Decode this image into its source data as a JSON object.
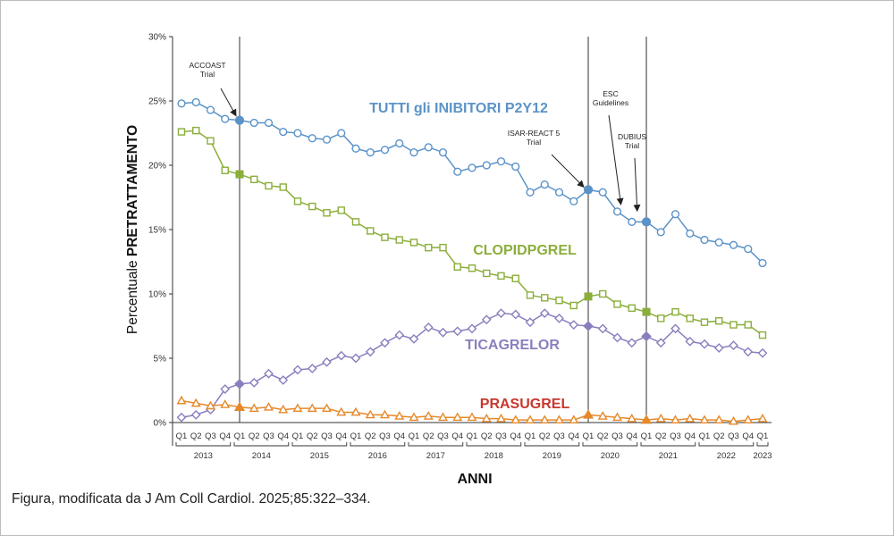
{
  "caption": "Figura, modificata da J Am Coll Cardiol. 2025;85:322–334.",
  "chart_data": {
    "type": "line",
    "ylabel_prefix": "Percentuale ",
    "ylabel_strong": "PRETRATTAMENTO",
    "xlabel": "ANNI",
    "ylim": [
      0,
      30
    ],
    "yticks": [
      0,
      5,
      10,
      15,
      20,
      25,
      30
    ],
    "ytick_labels": [
      "0%",
      "5%",
      "10%",
      "15%",
      "20%",
      "25%",
      "30%"
    ],
    "quarters": [
      "Q1",
      "Q2",
      "Q3",
      "Q4",
      "Q1",
      "Q2",
      "Q3",
      "Q4",
      "Q1",
      "Q2",
      "Q3",
      "Q4",
      "Q1",
      "Q2",
      "Q3",
      "Q4",
      "Q1",
      "Q2",
      "Q3",
      "Q4",
      "Q1",
      "Q2",
      "Q3",
      "Q4",
      "Q1",
      "Q2",
      "Q3",
      "Q4",
      "Q1",
      "Q2",
      "Q3",
      "Q4",
      "Q1",
      "Q2",
      "Q3",
      "Q4",
      "Q1",
      "Q2",
      "Q3",
      "Q4",
      "Q1"
    ],
    "years": [
      {
        "label": "2013",
        "start": 0,
        "end": 3
      },
      {
        "label": "2014",
        "start": 4,
        "end": 7
      },
      {
        "label": "2015",
        "start": 8,
        "end": 11
      },
      {
        "label": "2016",
        "start": 12,
        "end": 15
      },
      {
        "label": "2017",
        "start": 16,
        "end": 19
      },
      {
        "label": "2018",
        "start": 20,
        "end": 23
      },
      {
        "label": "2019",
        "start": 24,
        "end": 27
      },
      {
        "label": "2020",
        "start": 28,
        "end": 31
      },
      {
        "label": "2021",
        "start": 32,
        "end": 35
      },
      {
        "label": "2022",
        "start": 36,
        "end": 39
      },
      {
        "label": "2023",
        "start": 40,
        "end": 40
      }
    ],
    "series": [
      {
        "name": "TUTTI gli INIBITORI P2Y12",
        "color": "#5b93c8",
        "marker": "circle",
        "values": [
          24.8,
          24.9,
          24.3,
          23.6,
          23.5,
          23.3,
          23.3,
          22.6,
          22.5,
          22.1,
          22.0,
          22.5,
          21.3,
          21.0,
          21.2,
          21.7,
          21.0,
          21.4,
          21.0,
          19.5,
          19.8,
          20.0,
          20.3,
          19.9,
          17.9,
          18.5,
          17.9,
          17.2,
          18.1,
          17.9,
          16.4,
          15.6,
          15.6,
          14.8,
          16.2,
          14.7,
          14.2,
          14.0,
          13.8,
          13.5,
          12.4
        ]
      },
      {
        "name": "CLOPIDPGREL",
        "color": "#8bae3b",
        "marker": "square",
        "values": [
          22.6,
          22.7,
          21.9,
          19.6,
          19.3,
          18.9,
          18.4,
          18.3,
          17.2,
          16.8,
          16.3,
          16.5,
          15.6,
          14.9,
          14.4,
          14.2,
          14.0,
          13.6,
          13.6,
          12.1,
          12.0,
          11.6,
          11.4,
          11.2,
          9.9,
          9.7,
          9.5,
          9.1,
          9.8,
          10.0,
          9.2,
          8.9,
          8.6,
          8.1,
          8.6,
          8.1,
          7.8,
          7.9,
          7.6,
          7.6,
          6.8
        ]
      },
      {
        "name": "TICAGRELOR",
        "color": "#8a7fbd",
        "marker": "diamond",
        "values": [
          0.4,
          0.6,
          1.0,
          2.6,
          3.0,
          3.1,
          3.8,
          3.3,
          4.1,
          4.2,
          4.7,
          5.2,
          5.0,
          5.5,
          6.2,
          6.8,
          6.5,
          7.4,
          7.0,
          7.1,
          7.3,
          8.0,
          8.5,
          8.4,
          7.8,
          8.5,
          8.1,
          7.6,
          7.5,
          7.3,
          6.6,
          6.2,
          6.7,
          6.2,
          7.3,
          6.3,
          6.1,
          5.8,
          6.0,
          5.5,
          5.4
        ]
      },
      {
        "name": "PRASUGREL",
        "color": "#e5892a",
        "marker": "triangle",
        "values": [
          1.7,
          1.5,
          1.3,
          1.4,
          1.2,
          1.1,
          1.2,
          1.0,
          1.1,
          1.1,
          1.1,
          0.8,
          0.8,
          0.6,
          0.6,
          0.5,
          0.4,
          0.5,
          0.4,
          0.4,
          0.4,
          0.3,
          0.3,
          0.2,
          0.2,
          0.2,
          0.2,
          0.2,
          0.6,
          0.5,
          0.4,
          0.3,
          0.2,
          0.3,
          0.2,
          0.3,
          0.2,
          0.2,
          0.1,
          0.2,
          0.3
        ]
      }
    ],
    "series_labels": [
      {
        "text": "TUTTI gli INIBITORI P2Y12",
        "color": "#5b93c8"
      },
      {
        "text": "CLOPIDPGREL",
        "color": "#8bae3b"
      },
      {
        "text": "TICAGRELOR",
        "color": "#8a7fbd"
      },
      {
        "text": "PRASUGREL",
        "color": "#c8372d"
      }
    ],
    "events": [
      {
        "name": "ACCOAST",
        "lines": [
          "ACCOAST",
          "Trial"
        ],
        "at": 4
      },
      {
        "name": "ISAR-REACT 5",
        "lines": [
          "ISAR-REACT 5",
          "Trial"
        ],
        "at": 28
      },
      {
        "name": "ESC Guidelines",
        "lines": [
          "ESC",
          "Guidelines"
        ],
        "at": 30.3
      },
      {
        "name": "DUBIUS",
        "lines": [
          "DUBIUS",
          "Trial"
        ],
        "at": 32
      }
    ],
    "event_lines_at": [
      4,
      28,
      32
    ],
    "highlight_indices": [
      4,
      28,
      32
    ],
    "grid": false,
    "legend": "inline labels"
  }
}
